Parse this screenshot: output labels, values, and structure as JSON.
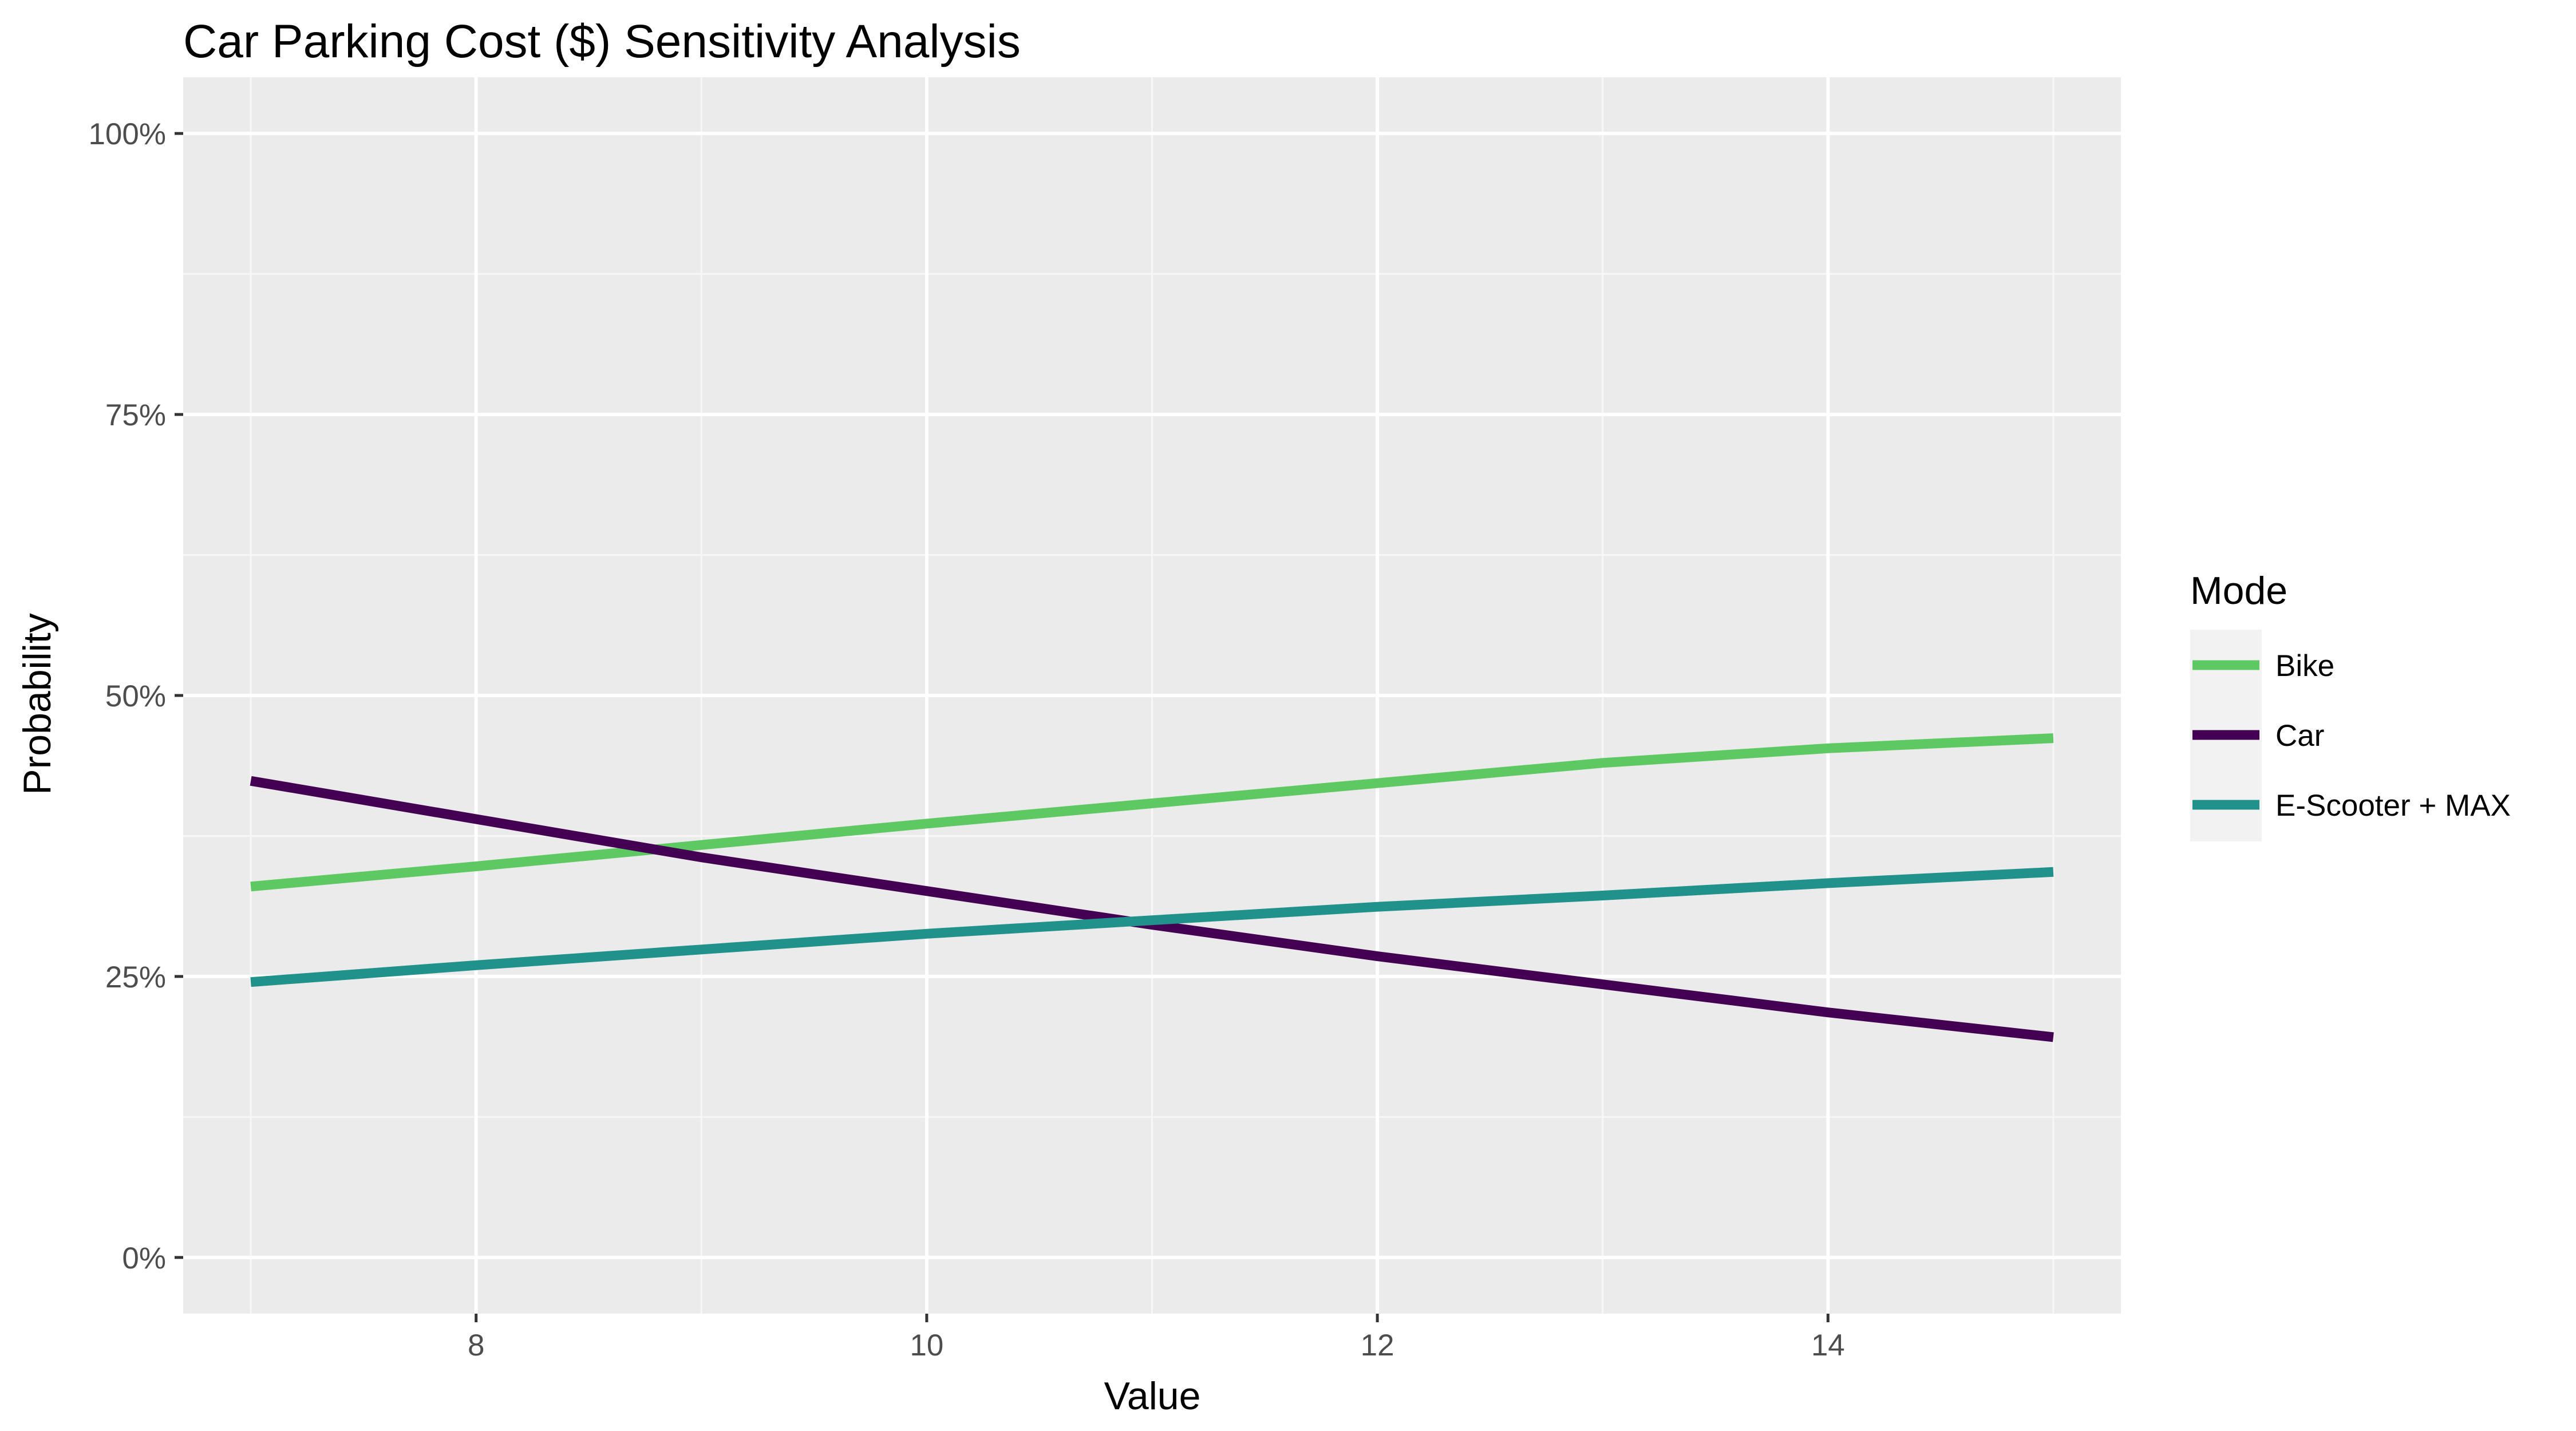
{
  "chart_data": {
    "type": "line",
    "title": "Car Parking Cost ($) Sensitivity Analysis",
    "xlabel": "Value",
    "ylabel": "Probability",
    "xlim": [
      6.7,
      15.3
    ],
    "ylim": [
      -0.05,
      1.05
    ],
    "x_ticks": [
      8,
      10,
      12,
      14
    ],
    "x_tick_labels": [
      "8",
      "10",
      "12",
      "14"
    ],
    "y_ticks": [
      0,
      0.25,
      0.5,
      0.75,
      1.0
    ],
    "y_tick_labels": [
      "0%",
      "25%",
      "50%",
      "75%",
      "100%"
    ],
    "grid": true,
    "legend": {
      "title": "Mode",
      "position": "right"
    },
    "x": [
      7,
      8,
      9,
      10,
      11,
      12,
      13,
      14,
      15
    ],
    "series": [
      {
        "name": "Bike",
        "color": "#5ec962",
        "values": [
          0.33,
          0.348,
          0.367,
          0.386,
          0.404,
          0.422,
          0.44,
          0.453,
          0.462
        ]
      },
      {
        "name": "Car",
        "color": "#440154",
        "values": [
          0.424,
          0.39,
          0.356,
          0.326,
          0.296,
          0.268,
          0.243,
          0.218,
          0.196
        ]
      },
      {
        "name": "E-Scooter + MAX",
        "color": "#21918c",
        "values": [
          0.245,
          0.26,
          0.274,
          0.288,
          0.3,
          0.312,
          0.322,
          0.333,
          0.343
        ]
      }
    ]
  }
}
